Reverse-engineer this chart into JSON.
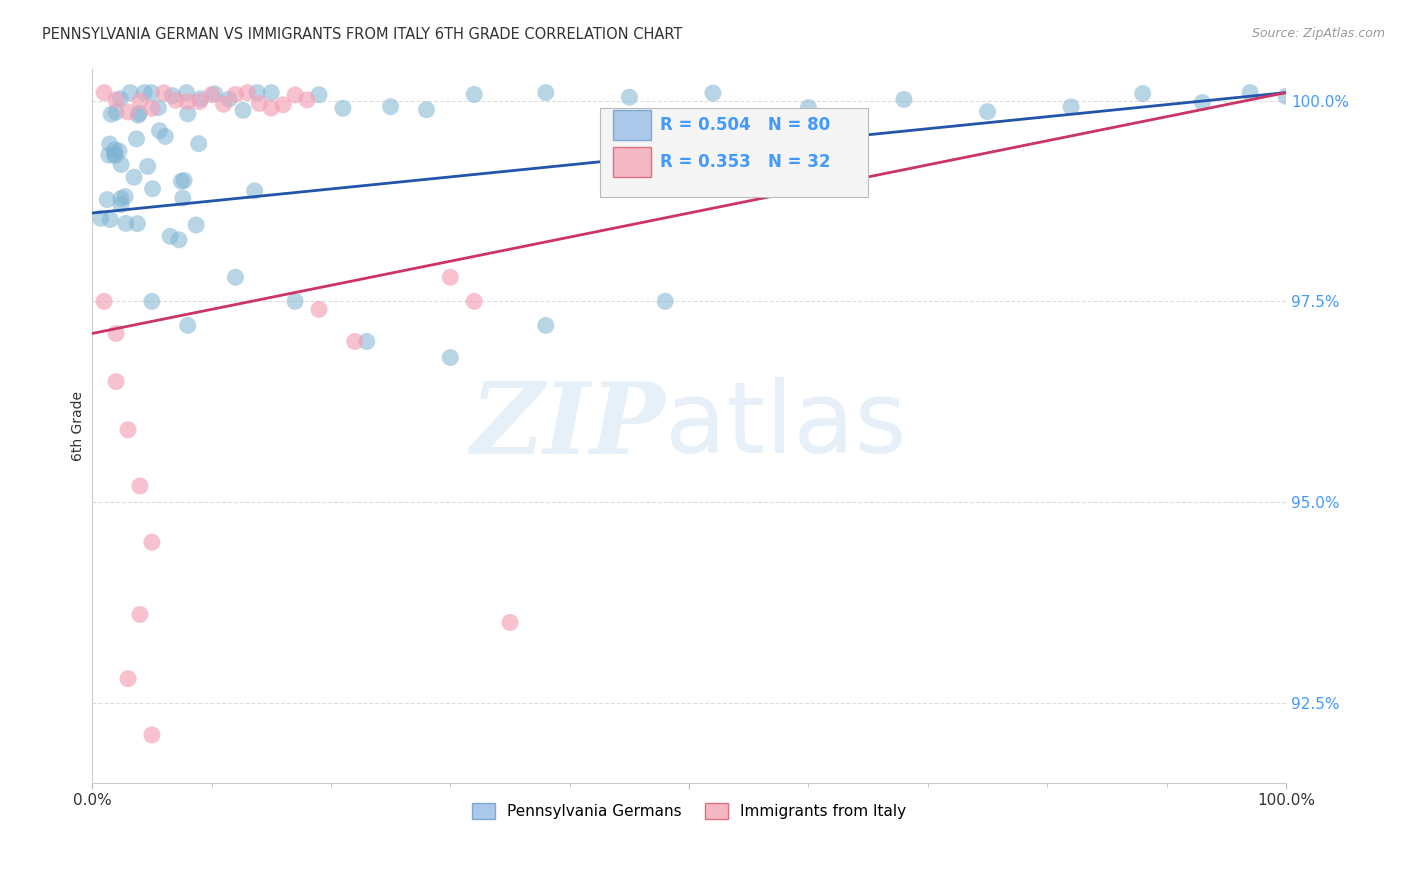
{
  "title": "PENNSYLVANIA GERMAN VS IMMIGRANTS FROM ITALY 6TH GRADE CORRELATION CHART",
  "source": "Source: ZipAtlas.com",
  "ylabel": "6th Grade",
  "xlim": [
    0.0,
    1.0
  ],
  "ylim": [
    0.915,
    1.004
  ],
  "yticks": [
    0.925,
    0.95,
    0.975,
    1.0
  ],
  "ytick_labels": [
    "92.5%",
    "95.0%",
    "97.5%",
    "100.0%"
  ],
  "blue_color": "#7fb3d3",
  "pink_color": "#f4a0b5",
  "blue_line_color": "#2255aa",
  "pink_line_color": "#cc3366",
  "R_blue": 0.504,
  "N_blue": 80,
  "R_pink": 0.353,
  "N_pink": 32,
  "legend_label_blue": "Pennsylvania Germans",
  "legend_label_pink": "Immigrants from Italy",
  "tick_color": "#4499ff",
  "title_color": "#333333",
  "source_color": "#999999",
  "grid_color": "#dddddd",
  "blue_line_start_y": 0.986,
  "blue_line_end_y": 1.001,
  "pink_line_start_y": 0.971,
  "pink_line_end_y": 1.001
}
